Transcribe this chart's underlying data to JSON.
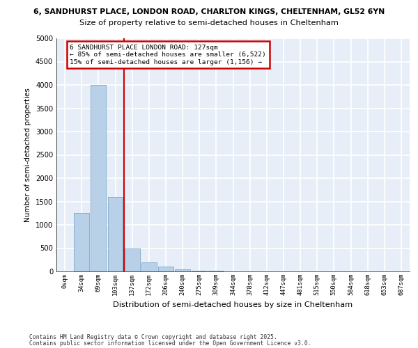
{
  "title_line1": "6, SANDHURST PLACE, LONDON ROAD, CHARLTON KINGS, CHELTENHAM, GL52 6YN",
  "title_line2": "Size of property relative to semi-detached houses in Cheltenham",
  "xlabel": "Distribution of semi-detached houses by size in Cheltenham",
  "ylabel": "Number of semi-detached properties",
  "bar_labels": [
    "0sqm",
    "34sqm",
    "69sqm",
    "103sqm",
    "137sqm",
    "172sqm",
    "206sqm",
    "240sqm",
    "275sqm",
    "309sqm",
    "344sqm",
    "378sqm",
    "412sqm",
    "447sqm",
    "481sqm",
    "515sqm",
    "550sqm",
    "584sqm",
    "618sqm",
    "653sqm",
    "687sqm"
  ],
  "bar_values": [
    0,
    1250,
    4000,
    1600,
    500,
    200,
    100,
    50,
    20,
    10,
    0,
    0,
    0,
    0,
    0,
    0,
    0,
    0,
    0,
    0,
    0
  ],
  "bar_color": "#b8d0e8",
  "bar_edge_color": "#7aaac8",
  "background_color": "#e8eef8",
  "grid_color": "#ffffff",
  "vline_x_pos": 3.5,
  "vline_color": "#cc0000",
  "ylim": [
    0,
    5000
  ],
  "yticks": [
    0,
    500,
    1000,
    1500,
    2000,
    2500,
    3000,
    3500,
    4000,
    4500,
    5000
  ],
  "annotation_title": "6 SANDHURST PLACE LONDON ROAD: 127sqm",
  "annotation_line1": "← 85% of semi-detached houses are smaller (6,522)",
  "annotation_line2": "15% of semi-detached houses are larger (1,156) →",
  "annotation_box_color": "#cc0000",
  "footer_line1": "Contains HM Land Registry data © Crown copyright and database right 2025.",
  "footer_line2": "Contains public sector information licensed under the Open Government Licence v3.0."
}
